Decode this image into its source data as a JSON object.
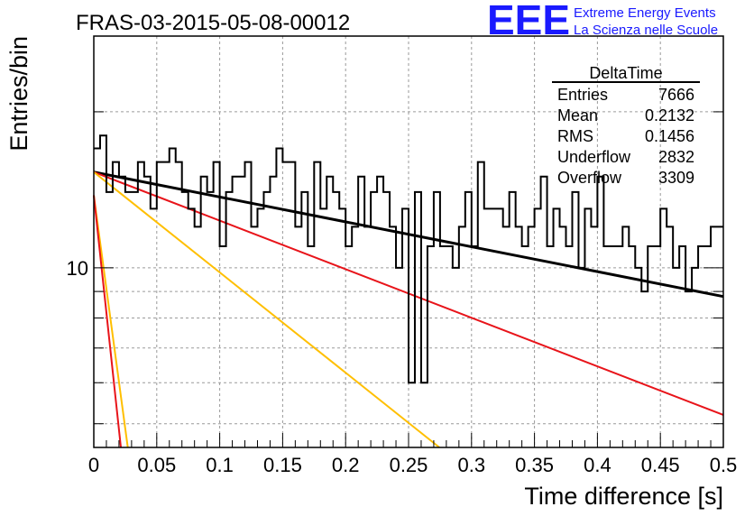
{
  "chart_data": {
    "type": "line",
    "title": "FRAS-03-2015-05-08-00012",
    "xlabel": "Time difference [s]",
    "ylabel": "Entries/bin",
    "xlim": [
      0,
      0.5
    ],
    "ylim": [
      4.5,
      28
    ],
    "log_y": true,
    "grid": true,
    "x_ticks": [
      "0",
      "0.05",
      "0.1",
      "0.15",
      "0.2",
      "0.25",
      "0.3",
      "0.35",
      "0.4",
      "0.45",
      "0.5"
    ],
    "y_ticks": [
      "10"
    ],
    "histogram": {
      "name": "DeltaTime",
      "bin_width": 0.005,
      "values": [
        17,
        18,
        14,
        16,
        15,
        14,
        14,
        16,
        15,
        13,
        16,
        16,
        17,
        16,
        14,
        13,
        12,
        15,
        14,
        16,
        11,
        14,
        15,
        15,
        16,
        12,
        13,
        14,
        15,
        17,
        16,
        16,
        12,
        14,
        11,
        16,
        13,
        15,
        14,
        13,
        11,
        12,
        15,
        12,
        14,
        15,
        14,
        12,
        10,
        13,
        6,
        14,
        6,
        11,
        14,
        11,
        11,
        10,
        12,
        14,
        11,
        16,
        13,
        13,
        13,
        12,
        14,
        12,
        11,
        12,
        13,
        15,
        11,
        13,
        12,
        11,
        14,
        10,
        13,
        12,
        15,
        11,
        11,
        11,
        12,
        11,
        10,
        9,
        11,
        11,
        13,
        12,
        10,
        11,
        9,
        10,
        11,
        11,
        12,
        12
      ]
    },
    "fits": [
      {
        "color": "#000000",
        "x": [
          0,
          0.5
        ],
        "y": [
          15.3,
          8.8
        ]
      },
      {
        "color": "#e8141a",
        "x": [
          0,
          0.5
        ],
        "y": [
          15.3,
          5.2
        ]
      },
      {
        "color": "#ffbf00",
        "x": [
          0,
          0.2745
        ],
        "y": [
          15.3,
          4.5
        ]
      },
      {
        "color": "#ffbf00",
        "x": [
          0,
          0.027
        ],
        "y": [
          13.8,
          4.5
        ]
      },
      {
        "color": "#e8141a",
        "x": [
          0,
          0.0215
        ],
        "y": [
          13.8,
          4.5
        ]
      }
    ],
    "stats": {
      "title": "DeltaTime",
      "rows": [
        {
          "label": "Entries",
          "value": "7666"
        },
        {
          "label": "Mean",
          "value": "0.2132"
        },
        {
          "label": "RMS",
          "value": "0.1456"
        },
        {
          "label": "Underflow",
          "value": "2832"
        },
        {
          "label": "Overflow",
          "value": "3309"
        }
      ]
    }
  },
  "logo": {
    "mark": "EEE",
    "line1": "Extreme Energy Events",
    "line2": "La Scienza nelle Scuole",
    "color": "#1a1aff"
  }
}
